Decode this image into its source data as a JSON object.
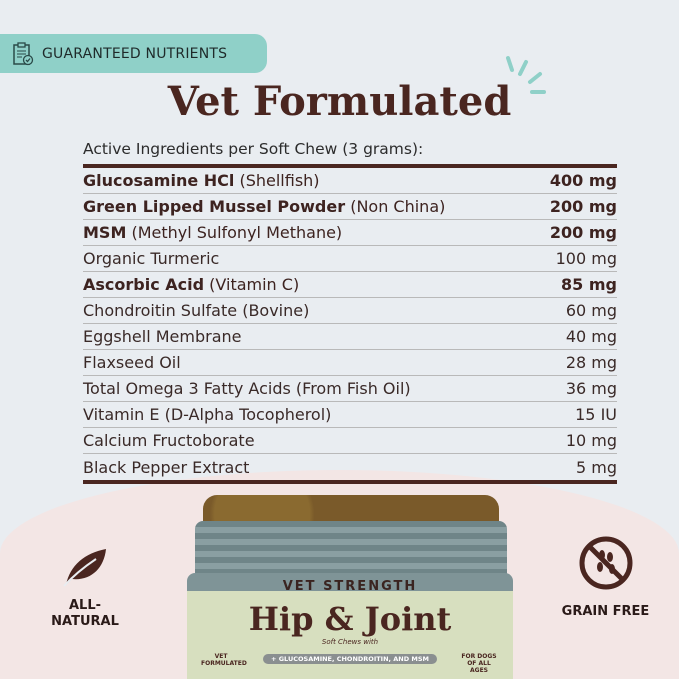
{
  "badge": {
    "label": "GUARANTEED NUTRIENTS",
    "icon": "clipboard-check-icon"
  },
  "title": "Vet Formulated",
  "subtitle": "Active Ingredients per Soft Chew (3 grams):",
  "ingredients": [
    {
      "name": "Glucosamine HCl",
      "qual": " (Shellfish)",
      "amount": "400 mg",
      "bold": true
    },
    {
      "name": "Green Lipped Mussel Powder",
      "qual": " (Non China)",
      "amount": "200 mg",
      "bold": true
    },
    {
      "name": "MSM",
      "qual": " (Methyl Sulfonyl Methane)",
      "amount": "200 mg",
      "bold": true
    },
    {
      "name": "Organic Turmeric",
      "qual": "",
      "amount": "100 mg",
      "bold": false
    },
    {
      "name": "Ascorbic Acid",
      "qual": " (Vitamin C)",
      "amount": "85 mg",
      "bold": true
    },
    {
      "name": "Chondroitin Sulfate",
      "qual": " (Bovine)",
      "amount": "60 mg",
      "bold": false
    },
    {
      "name": "Eggshell Membrane",
      "qual": "",
      "amount": "40 mg",
      "bold": false
    },
    {
      "name": "Flaxseed Oil",
      "qual": "",
      "amount": "28 mg",
      "bold": false
    },
    {
      "name": "Total Omega 3 Fatty Acids",
      "qual": " (From Fish Oil)",
      "amount": "36 mg",
      "bold": false
    },
    {
      "name": "Vitamin E",
      "qual": " (D-Alpha Tocopherol)",
      "amount": "15 IU",
      "bold": false
    },
    {
      "name": "Calcium Fructoborate",
      "qual": "",
      "amount": "10 mg",
      "bold": false
    },
    {
      "name": "Black Pepper Extract",
      "qual": "",
      "amount": "5 mg",
      "bold": false
    }
  ],
  "left_badge": {
    "label": "ALL-\nNATURAL",
    "icon": "leaf-icon"
  },
  "right_badge": {
    "label": "GRAIN FREE",
    "icon": "no-grain-icon"
  },
  "jar": {
    "top_label": "VET STRENGTH",
    "product": "Hip & Joint",
    "tagline": "Soft Chews with",
    "pill": "+ GLUCOSAMINE, CHONDROITIN, AND MSM",
    "left": "VET FORMULATED",
    "right": "FOR DOGS OF ALL AGES"
  },
  "colors": {
    "accent": "#8fd0c8",
    "brown": "#4a2620",
    "background": "#e9edf1"
  }
}
